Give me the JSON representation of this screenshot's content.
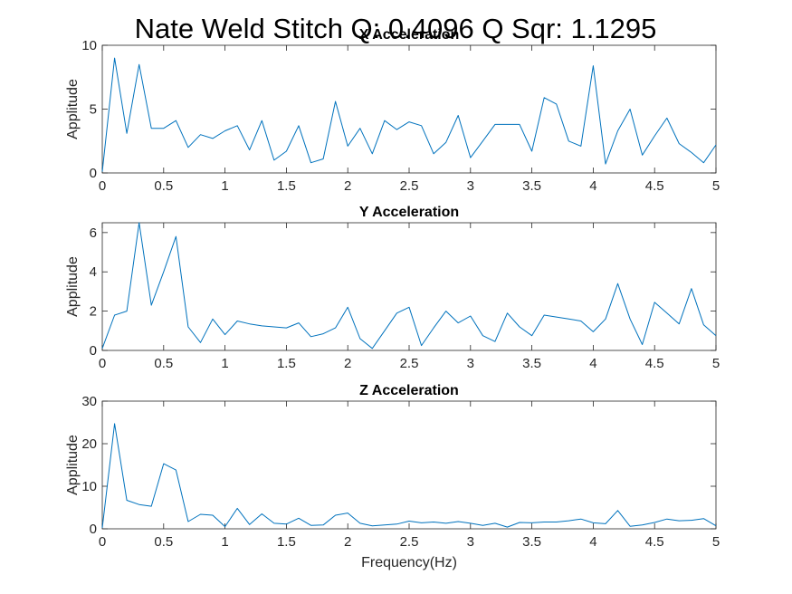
{
  "figure": {
    "suptitle": "Nate Weld Stitch   Q: 0.4096   Q Sqr: 1.1295",
    "line_color": "#0072BD"
  },
  "chart_data": [
    {
      "type": "line",
      "title": "X Acceleration",
      "xlabel": "",
      "ylabel": "Applitude",
      "xlim": [
        0,
        5
      ],
      "ylim": [
        0,
        10
      ],
      "xticks": [
        0,
        0.5,
        1,
        1.5,
        2,
        2.5,
        3,
        3.5,
        4,
        4.5,
        5
      ],
      "xtick_labels": [
        "0",
        "0.5",
        "1",
        "1.5",
        "2",
        "2.5",
        "3",
        "3.5",
        "4",
        "4.5",
        "5"
      ],
      "yticks": [
        0,
        5,
        10
      ],
      "ytick_labels": [
        "0",
        "5",
        "10"
      ],
      "grid": false,
      "x": [
        0,
        0.1,
        0.2,
        0.3,
        0.4,
        0.5,
        0.6,
        0.7,
        0.8,
        0.9,
        1.0,
        1.1,
        1.2,
        1.3,
        1.4,
        1.5,
        1.6,
        1.7,
        1.8,
        1.9,
        2.0,
        2.1,
        2.2,
        2.3,
        2.4,
        2.5,
        2.6,
        2.7,
        2.8,
        2.9,
        3.0,
        3.1,
        3.2,
        3.3,
        3.4,
        3.5,
        3.6,
        3.7,
        3.8,
        3.9,
        4.0,
        4.1,
        4.2,
        4.3,
        4.4,
        4.5,
        4.6,
        4.7,
        4.8,
        4.9,
        5.0
      ],
      "y": [
        0.1,
        9.0,
        3.1,
        8.5,
        3.5,
        3.5,
        4.1,
        2.0,
        3.0,
        2.7,
        3.3,
        3.7,
        1.8,
        4.1,
        1.0,
        1.7,
        3.7,
        0.8,
        1.1,
        5.6,
        2.1,
        3.5,
        1.5,
        4.1,
        3.4,
        4.0,
        3.7,
        1.5,
        2.4,
        4.5,
        1.2,
        2.5,
        3.8,
        3.8,
        3.8,
        1.7,
        5.9,
        5.4,
        2.5,
        2.1,
        8.4,
        0.7,
        3.3,
        5.0,
        1.4,
        2.9,
        4.3,
        2.3,
        1.6,
        0.8,
        2.2
      ]
    },
    {
      "type": "line",
      "title": "Y Acceleration",
      "xlabel": "",
      "ylabel": "Applitude",
      "xlim": [
        0,
        5
      ],
      "ylim": [
        0,
        6.5
      ],
      "xticks": [
        0,
        0.5,
        1,
        1.5,
        2,
        2.5,
        3,
        3.5,
        4,
        4.5,
        5
      ],
      "xtick_labels": [
        "0",
        "0.5",
        "1",
        "1.5",
        "2",
        "2.5",
        "3",
        "3.5",
        "4",
        "4.5",
        "5"
      ],
      "yticks": [
        0,
        2,
        4,
        6
      ],
      "ytick_labels": [
        "0",
        "2",
        "4",
        "6"
      ],
      "grid": false,
      "x": [
        0,
        0.1,
        0.2,
        0.3,
        0.4,
        0.5,
        0.6,
        0.7,
        0.8,
        0.9,
        1.0,
        1.1,
        1.2,
        1.3,
        1.4,
        1.5,
        1.6,
        1.7,
        1.8,
        1.9,
        2.0,
        2.1,
        2.2,
        2.3,
        2.4,
        2.5,
        2.6,
        2.7,
        2.8,
        2.9,
        3.0,
        3.1,
        3.2,
        3.3,
        3.4,
        3.5,
        3.6,
        3.7,
        3.8,
        3.9,
        4.0,
        4.1,
        4.2,
        4.3,
        4.4,
        4.5,
        4.6,
        4.7,
        4.8,
        4.9,
        5.0
      ],
      "y": [
        0.1,
        1.8,
        2.0,
        6.5,
        2.3,
        4.0,
        5.8,
        1.2,
        0.4,
        1.6,
        0.8,
        1.5,
        1.35,
        1.25,
        1.2,
        1.15,
        1.4,
        0.7,
        0.85,
        1.15,
        2.2,
        0.6,
        0.1,
        1.0,
        1.9,
        2.2,
        0.25,
        1.15,
        2.0,
        1.4,
        1.75,
        0.75,
        0.45,
        1.9,
        1.2,
        0.75,
        1.8,
        1.7,
        1.6,
        1.5,
        0.95,
        1.6,
        3.4,
        1.6,
        0.3,
        2.45,
        1.9,
        1.35,
        3.15,
        1.3,
        0.75
      ]
    },
    {
      "type": "line",
      "title": "Z Acceleration",
      "xlabel": "Frequency(Hz)",
      "ylabel": "Applitude",
      "xlim": [
        0,
        5
      ],
      "ylim": [
        0,
        30
      ],
      "xticks": [
        0,
        0.5,
        1,
        1.5,
        2,
        2.5,
        3,
        3.5,
        4,
        4.5,
        5
      ],
      "xtick_labels": [
        "0",
        "0.5",
        "1",
        "1.5",
        "2",
        "2.5",
        "3",
        "3.5",
        "4",
        "4.5",
        "5"
      ],
      "yticks": [
        0,
        10,
        20,
        30
      ],
      "ytick_labels": [
        "0",
        "10",
        "20",
        "30"
      ],
      "grid": false,
      "x": [
        0,
        0.1,
        0.2,
        0.3,
        0.4,
        0.5,
        0.6,
        0.7,
        0.8,
        0.9,
        1.0,
        1.1,
        1.2,
        1.3,
        1.4,
        1.5,
        1.6,
        1.7,
        1.8,
        1.9,
        2.0,
        2.1,
        2.2,
        2.3,
        2.4,
        2.5,
        2.6,
        2.7,
        2.8,
        2.9,
        3.0,
        3.1,
        3.2,
        3.3,
        3.4,
        3.5,
        3.6,
        3.7,
        3.8,
        3.9,
        4.0,
        4.1,
        4.2,
        4.3,
        4.4,
        4.5,
        4.6,
        4.7,
        4.8,
        4.9,
        5.0
      ],
      "y": [
        0.2,
        24.7,
        6.7,
        5.7,
        5.3,
        15.3,
        13.8,
        1.7,
        3.4,
        3.2,
        0.5,
        4.8,
        1.0,
        3.5,
        1.3,
        1.1,
        2.5,
        0.8,
        0.9,
        3.2,
        3.7,
        1.3,
        0.7,
        0.9,
        1.1,
        1.8,
        1.4,
        1.6,
        1.3,
        1.7,
        1.3,
        0.8,
        1.3,
        0.4,
        1.5,
        1.4,
        1.6,
        1.6,
        1.9,
        2.3,
        1.4,
        1.2,
        4.3,
        0.6,
        0.9,
        1.5,
        2.3,
        1.9,
        2.0,
        2.4,
        0.7
      ]
    }
  ]
}
